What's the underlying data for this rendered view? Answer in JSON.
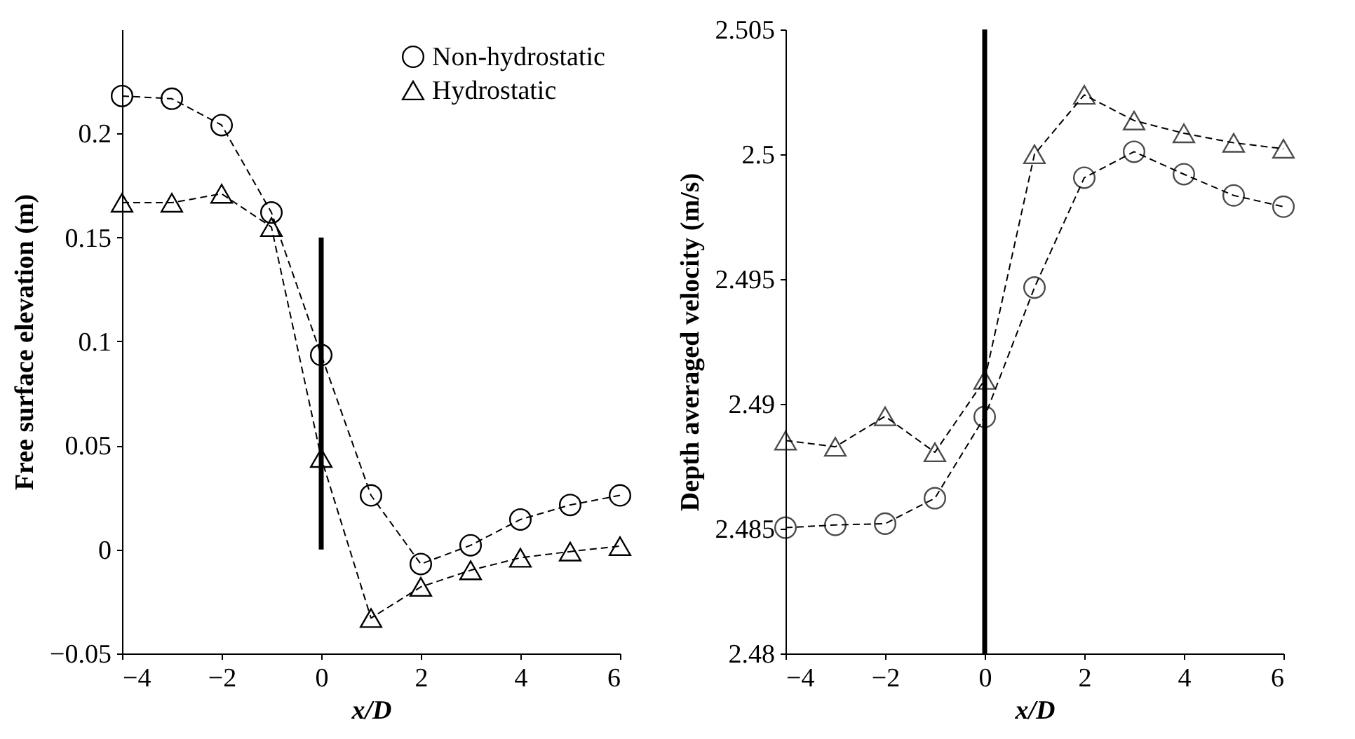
{
  "chart_data": [
    {
      "type": "line",
      "xlabel": "x/D",
      "ylabel": "Free surface elevation (m)",
      "xlim": [
        -4,
        6
      ],
      "xticks": [
        -4,
        -2,
        0,
        2,
        4,
        6
      ],
      "ylim": [
        -0.05,
        0.25
      ],
      "yticks": [
        -0.05,
        0,
        0.05,
        0.1,
        0.15,
        0.2
      ],
      "legend": "top right",
      "line_style": "dashed",
      "series": [
        {
          "name": "Non-hydrostatic",
          "color": "#000000",
          "marker": "circle",
          "x": [
            -4,
            -3,
            -2,
            -1,
            0,
            1,
            2,
            3,
            4,
            5,
            6
          ],
          "values": [
            0.218,
            0.2167,
            0.204,
            0.162,
            0.0935,
            0.026,
            -0.007,
            0.002,
            0.0144,
            0.0214,
            0.026
          ]
        },
        {
          "name": "Hydrostatic",
          "color": "#000000",
          "marker": "triangle",
          "x": [
            -4,
            -3,
            -2,
            -1,
            0,
            1,
            2,
            3,
            4,
            5,
            6
          ],
          "values": [
            0.1667,
            0.1667,
            0.171,
            0.155,
            0.044,
            -0.033,
            -0.018,
            -0.01,
            -0.004,
            -0.001,
            0.0016
          ]
        },
        {
          "color": "#000000",
          "marker": "none",
          "line_style": "solid",
          "x": [
            0,
            0
          ],
          "values": [
            0,
            0.15
          ]
        }
      ]
    },
    {
      "type": "line",
      "xlabel": "x/D",
      "ylabel": "Depth averaged velocity (m/s)",
      "xlim": [
        -4,
        6
      ],
      "xticks": [
        -4,
        -2,
        0,
        2,
        4,
        6
      ],
      "ylim": [
        2.48,
        2.505
      ],
      "yticks": [
        2.48,
        2.485,
        2.49,
        2.495,
        2.5,
        2.505
      ],
      "line_style": "dashed",
      "ref_lines": [
        {
          "axis": "x",
          "value": 0,
          "color": "#000000",
          "line_style": "solid"
        }
      ],
      "series": [
        {
          "color": "#000000",
          "marker": "circle",
          "x": [
            -4,
            -3,
            -2,
            -1,
            0,
            1,
            2,
            3,
            4,
            5,
            6
          ],
          "values": [
            2.48504,
            2.48515,
            2.4852,
            2.48622,
            2.48948,
            2.49466,
            2.49906,
            2.5001,
            2.4992,
            2.49835,
            2.4979
          ]
        },
        {
          "color": "#000000",
          "marker": "triangle",
          "x": [
            -4,
            -3,
            -2,
            -1,
            0,
            1,
            2,
            3,
            4,
            5,
            6
          ],
          "values": [
            2.48853,
            2.48828,
            2.4895,
            2.48806,
            2.49096,
            2.5,
            2.50238,
            2.50135,
            2.50084,
            2.50046,
            2.50022
          ]
        }
      ]
    }
  ]
}
